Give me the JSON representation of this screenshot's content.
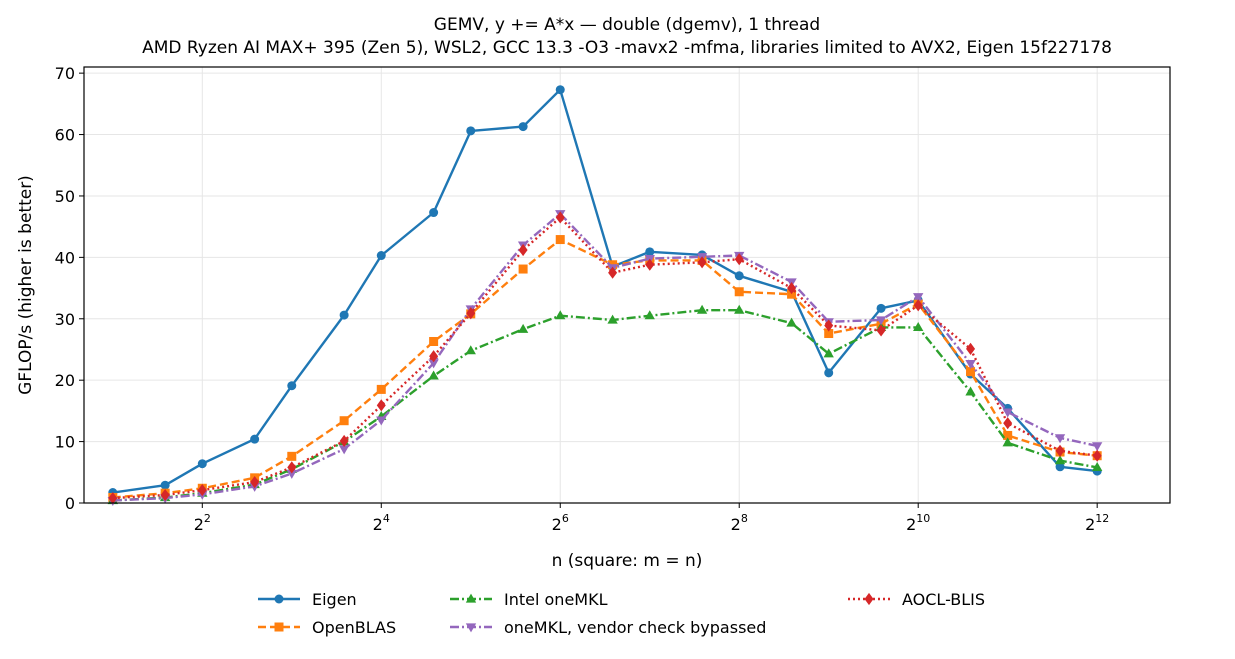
{
  "chart_data": {
    "type": "line",
    "title": "GEMV, y += A*x — double (dgemv), 1 thread",
    "subtitle": "AMD Ryzen AI MAX+ 395 (Zen 5), WSL2, GCC 13.3 -O3 -mavx2 -mfma, libraries limited to AVX2, Eigen 15f227178",
    "xlabel": "n (square: m = n)",
    "ylabel": "GFLOP/s (higher is better)",
    "x_scale": "log2",
    "xlim": [
      1.6,
      7200
    ],
    "ylim": [
      0,
      71
    ],
    "x_ticks": [
      {
        "value": 4,
        "base": "2",
        "exp": "2"
      },
      {
        "value": 16,
        "base": "2",
        "exp": "4"
      },
      {
        "value": 64,
        "base": "2",
        "exp": "6"
      },
      {
        "value": 256,
        "base": "2",
        "exp": "8"
      },
      {
        "value": 1024,
        "base": "2",
        "exp": "10"
      },
      {
        "value": 4096,
        "base": "2",
        "exp": "12"
      }
    ],
    "y_ticks": [
      "0",
      "10",
      "20",
      "30",
      "40",
      "50",
      "60",
      "70"
    ],
    "grid": true,
    "legend_position": "below",
    "series": [
      {
        "name": "Eigen",
        "color": "#1f77b4",
        "marker": "circle",
        "dash": "",
        "x": [
          2,
          3,
          4,
          6,
          8,
          12,
          16,
          24,
          32,
          48,
          64,
          96,
          128,
          192,
          256,
          384,
          512,
          768,
          1024,
          1536,
          2048,
          3072,
          4096
        ],
        "y": [
          1.7,
          2.9,
          6.4,
          10.4,
          19.1,
          30.6,
          40.3,
          47.3,
          60.6,
          61.3,
          67.3,
          38.5,
          40.9,
          40.4,
          37.0,
          34.4,
          21.2,
          31.7,
          33.0,
          21.0,
          15.4,
          5.9,
          5.2
        ]
      },
      {
        "name": "OpenBLAS",
        "color": "#ff7f0e",
        "marker": "square",
        "dash": "8,4",
        "x": [
          2,
          3,
          4,
          6,
          8,
          12,
          16,
          24,
          32,
          48,
          64,
          96,
          128,
          192,
          256,
          384,
          512,
          768,
          1024,
          1536,
          2048,
          3072,
          4096
        ],
        "y": [
          0.9,
          1.6,
          2.4,
          4.1,
          7.6,
          13.4,
          18.5,
          26.3,
          30.8,
          38.1,
          42.9,
          38.8,
          39.5,
          39.5,
          34.4,
          34.0,
          27.6,
          29.2,
          32.4,
          21.4,
          11.0,
          8.3,
          7.7
        ]
      },
      {
        "name": "Intel oneMKL",
        "color": "#2ca02c",
        "marker": "triangle-up",
        "dash": "9,3,2,3",
        "x": [
          2,
          3,
          4,
          6,
          8,
          12,
          16,
          24,
          32,
          48,
          64,
          96,
          128,
          192,
          256,
          384,
          512,
          768,
          1024,
          1536,
          2048,
          3072,
          4096
        ],
        "y": [
          0.4,
          0.9,
          1.6,
          3.0,
          5.5,
          10.0,
          14.1,
          20.7,
          24.8,
          28.3,
          30.5,
          29.8,
          30.5,
          31.4,
          31.4,
          29.3,
          24.3,
          28.6,
          28.6,
          18.1,
          9.8,
          6.9,
          5.8
        ]
      },
      {
        "name": "oneMKL, vendor check bypassed",
        "color": "#9467bd",
        "marker": "triangle-down",
        "dash": "9,3,2,3",
        "x": [
          2,
          3,
          4,
          6,
          8,
          12,
          16,
          24,
          32,
          48,
          64,
          96,
          128,
          192,
          256,
          384,
          512,
          768,
          1024,
          1536,
          2048,
          3072,
          4096
        ],
        "y": [
          0.4,
          0.8,
          1.4,
          2.7,
          4.8,
          8.8,
          13.5,
          22.8,
          31.6,
          42.0,
          47.1,
          38.3,
          39.8,
          40.1,
          40.3,
          36.0,
          29.5,
          29.8,
          33.6,
          22.7,
          14.8,
          10.6,
          9.3
        ]
      },
      {
        "name": "AOCL-BLIS",
        "color": "#d62728",
        "marker": "diamond",
        "dash": "2,3",
        "x": [
          2,
          3,
          4,
          6,
          8,
          12,
          16,
          24,
          32,
          48,
          64,
          96,
          128,
          192,
          256,
          384,
          512,
          768,
          1024,
          1536,
          2048,
          3072,
          4096
        ],
        "y": [
          0.8,
          1.3,
          2.1,
          3.4,
          5.8,
          10.1,
          15.9,
          23.9,
          30.9,
          41.2,
          46.5,
          37.5,
          38.8,
          39.2,
          39.7,
          35.0,
          28.9,
          28.1,
          32.2,
          25.1,
          13.0,
          8.5,
          7.7
        ]
      }
    ]
  }
}
